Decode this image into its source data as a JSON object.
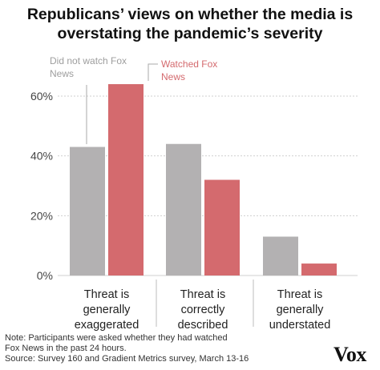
{
  "chart_data": {
    "type": "bar",
    "title_lines": [
      "Republicans’ views on whether the media is",
      "overstating the pandemic’s severity"
    ],
    "categories": [
      [
        "Threat is",
        "generally",
        "exaggerated"
      ],
      [
        "Threat is",
        "correctly",
        "described"
      ],
      [
        "Threat is",
        "generally",
        "understated"
      ]
    ],
    "series": [
      {
        "name_lines": [
          "Did not watch Fox",
          "News"
        ],
        "color": "#b3b1b2",
        "values": [
          43,
          44,
          13
        ]
      },
      {
        "name_lines": [
          "Watched Fox",
          "News"
        ],
        "color": "#d46a6e",
        "values": [
          64,
          32,
          4
        ]
      }
    ],
    "y_ticks": [
      0,
      20,
      40,
      60
    ],
    "y_tick_labels": [
      "0%",
      "20%",
      "40%",
      "60%"
    ],
    "ylim": [
      0,
      70
    ],
    "grid": true,
    "legend": "annotations above first category"
  },
  "footer": {
    "note_lines": [
      "Note: Participants were asked whether they had watched",
      "Fox News in the past 24 hours."
    ],
    "source": "Source: Survey 160 and Gradient Metrics survey, March 13-16"
  },
  "brand": {
    "logo_text": "Vox"
  }
}
